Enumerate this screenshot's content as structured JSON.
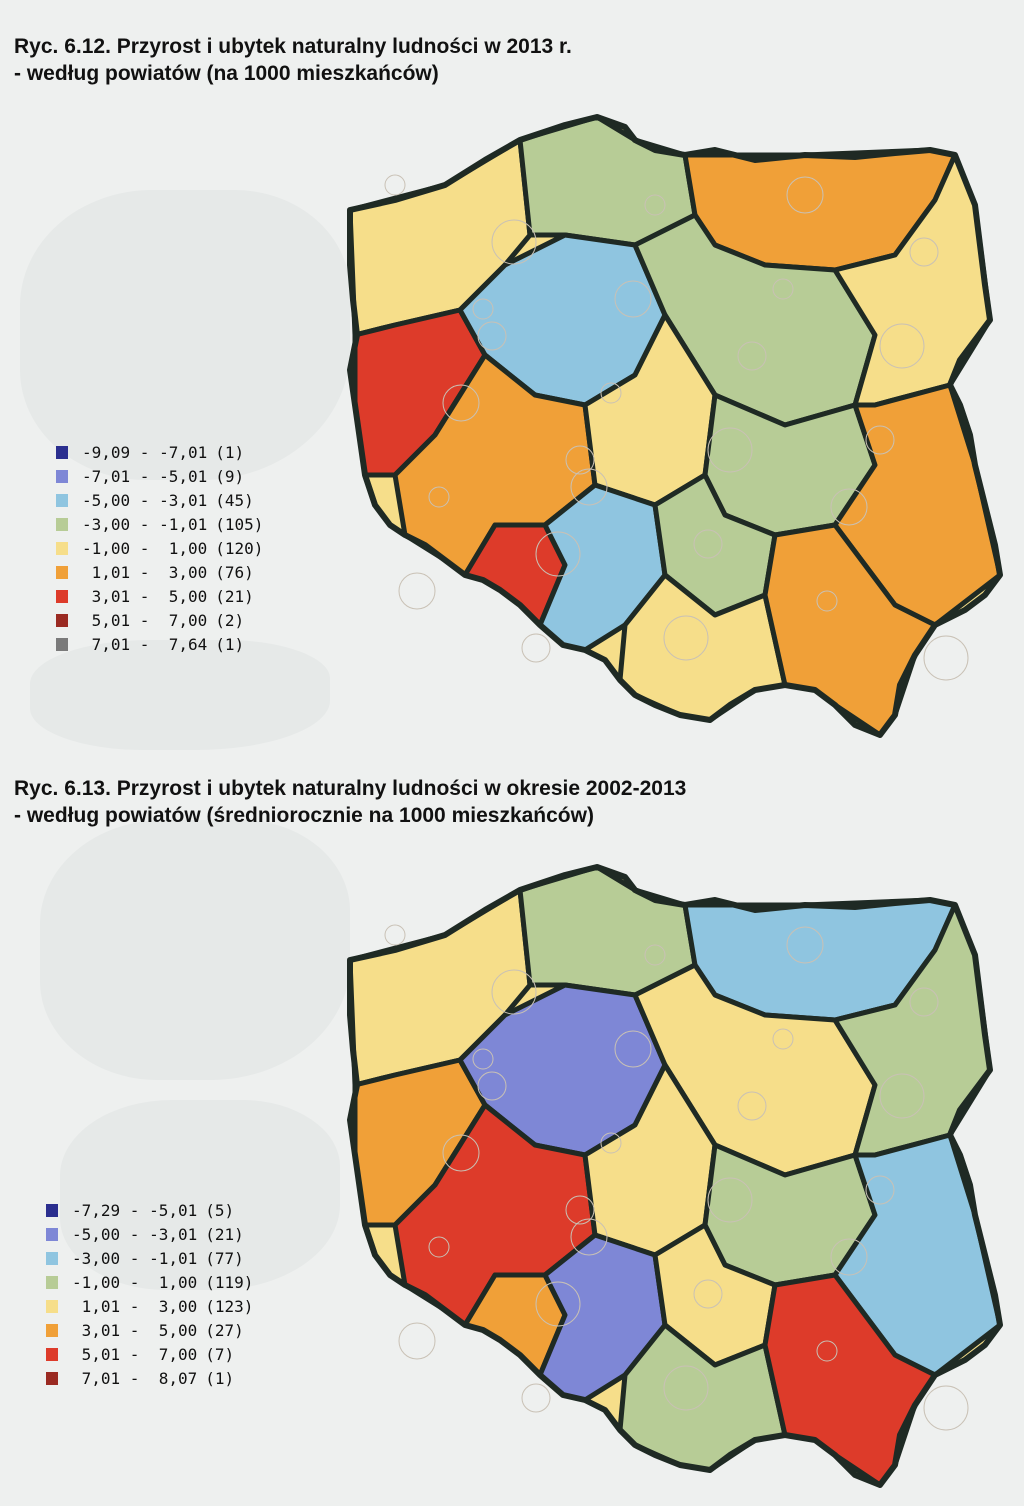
{
  "figures": [
    {
      "title_line1": "Ryc. 6.12. Przyrost i ubytek naturalny ludności w 2013 r.",
      "title_line2": "- według powiatów (na 1000 mieszkańców)",
      "legend": [
        {
          "range": "-9,09 - -7,01",
          "count": "(1)",
          "color": "#2b2f8f"
        },
        {
          "range": "-7,01 - -5,01",
          "count": "(9)",
          "color": "#7e87d6"
        },
        {
          "range": "-5,00 - -3,01",
          "count": "(45)",
          "color": "#8fc5e0"
        },
        {
          "range": "-3,00 - -1,01",
          "count": "(105)",
          "color": "#b7cc96"
        },
        {
          "range": "-1,00 -  1,00",
          "count": "(120)",
          "color": "#f6de8a"
        },
        {
          "range": " 1,01 -  3,00",
          "count": "(76)",
          "color": "#f0a038"
        },
        {
          "range": " 3,01 -  5,00",
          "count": "(21)",
          "color": "#dd3b2a"
        },
        {
          "range": " 5,01 -  7,00",
          "count": "(2)",
          "color": "#9a2a22"
        },
        {
          "range": " 7,01 -  7,64",
          "count": "(1)",
          "color": "#7a7a7a"
        }
      ]
    },
    {
      "title_line1": "Ryc. 6.13. Przyrost i ubytek naturalny ludności w okresie 2002-2013",
      "title_line2": "- według powiatów (średniorocznie na 1000 mieszkańców)",
      "legend": [
        {
          "range": "-7,29 - -5,01",
          "count": "(5)",
          "color": "#2b2f8f"
        },
        {
          "range": "-5,00 - -3,01",
          "count": "(21)",
          "color": "#7e87d6"
        },
        {
          "range": "-3,00 - -1,01",
          "count": "(77)",
          "color": "#8fc5e0"
        },
        {
          "range": "-1,00 -  1,00",
          "count": "(119)",
          "color": "#b7cc96"
        },
        {
          "range": " 1,01 -  3,00",
          "count": "(123)",
          "color": "#f6de8a"
        },
        {
          "range": " 3,01 -  5,00",
          "count": "(27)",
          "color": "#f0a038"
        },
        {
          "range": " 5,01 -  7,00",
          "count": "(7)",
          "color": "#dd3b2a"
        },
        {
          "range": " 7,01 -  8,07",
          "count": "(1)",
          "color": "#9a2a22"
        }
      ]
    }
  ],
  "map_fills": {
    "fig1": [
      "#f6de8a",
      "#b7cc96",
      "#f0a038",
      "#dd3b2a",
      "#8fc5e0",
      "#b7cc96",
      "#f6de8a",
      "#f0a038"
    ],
    "fig2": [
      "#f6de8a",
      "#b7cc96",
      "#8fc5e0",
      "#f0a038",
      "#7e87d6",
      "#f6de8a",
      "#b7cc96",
      "#dd3b2a"
    ]
  },
  "border_color": "#1f2a24"
}
